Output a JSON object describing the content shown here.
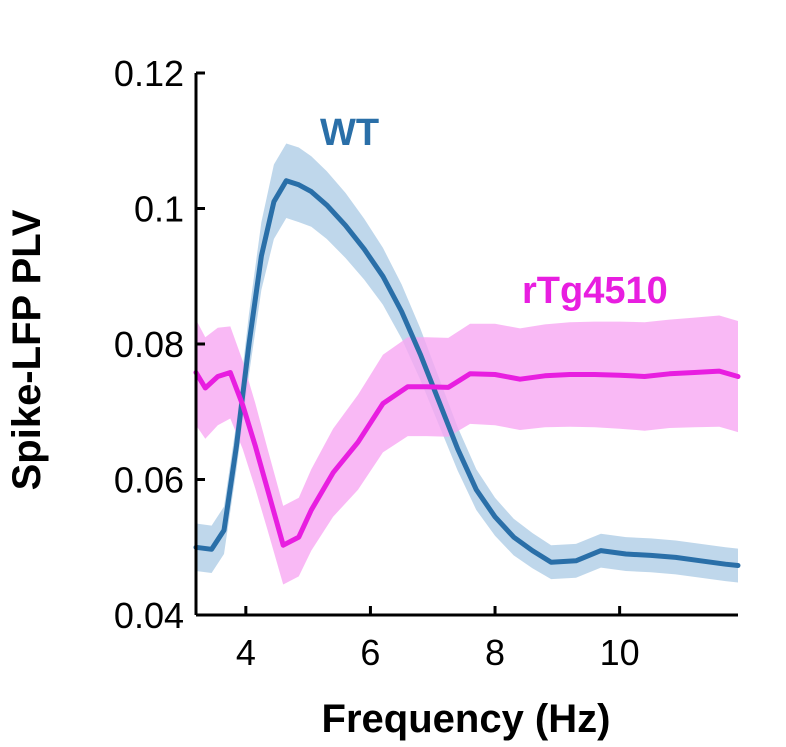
{
  "chart_data": {
    "type": "line",
    "xlabel": "Frequency (Hz)",
    "ylabel": "Spike-LFP PLV",
    "xlim": [
      3.2,
      11.9
    ],
    "ylim": [
      0.04,
      0.12
    ],
    "xticks": [
      4,
      6,
      8,
      10
    ],
    "yticks": [
      0.04,
      0.06,
      0.08,
      0.1,
      0.12
    ],
    "xtick_labels": [
      "4",
      "6",
      "8",
      "10"
    ],
    "ytick_labels": [
      "0.04",
      "0.06",
      "0.08",
      "0.1",
      "0.12"
    ],
    "grid": false,
    "series": [
      {
        "name": "WT",
        "label_text": "WT",
        "color": "#2a6fa8",
        "band_color": "#a9c9e4",
        "x": [
          3.2,
          3.45,
          3.65,
          3.85,
          4.05,
          4.25,
          4.45,
          4.65,
          4.85,
          5.05,
          5.3,
          5.6,
          5.9,
          6.2,
          6.5,
          6.8,
          7.1,
          7.4,
          7.7,
          8.0,
          8.3,
          8.6,
          8.9,
          9.3,
          9.7,
          10.1,
          10.5,
          10.9,
          11.3,
          11.7,
          11.9
        ],
        "y": [
          0.05,
          0.0497,
          0.0525,
          0.065,
          0.08,
          0.093,
          0.101,
          0.1041,
          0.1035,
          0.1025,
          0.1005,
          0.0975,
          0.094,
          0.09,
          0.0848,
          0.0785,
          0.0715,
          0.0645,
          0.0585,
          0.0545,
          0.0515,
          0.0495,
          0.0478,
          0.048,
          0.0495,
          0.049,
          0.0488,
          0.0485,
          0.048,
          0.0475,
          0.0473
        ],
        "err": [
          0.0035,
          0.0035,
          0.0035,
          0.0035,
          0.0045,
          0.005,
          0.0055,
          0.0055,
          0.0055,
          0.0052,
          0.005,
          0.0048,
          0.0045,
          0.0042,
          0.004,
          0.0038,
          0.0035,
          0.0032,
          0.003,
          0.0028,
          0.0027,
          0.0026,
          0.0025,
          0.0025,
          0.0025,
          0.0025,
          0.0025,
          0.0025,
          0.0025,
          0.0025,
          0.0025
        ]
      },
      {
        "name": "rTg4510",
        "label_text": "rTg4510",
        "color": "#e81ee0",
        "band_color": "#f8a8f3",
        "x": [
          3.2,
          3.35,
          3.55,
          3.75,
          3.95,
          4.15,
          4.35,
          4.6,
          4.85,
          5.05,
          5.4,
          5.8,
          6.2,
          6.6,
          6.9,
          7.25,
          7.6,
          8.0,
          8.4,
          8.8,
          9.2,
          9.6,
          10.0,
          10.4,
          10.8,
          11.2,
          11.6,
          11.9
        ],
        "y": [
          0.0758,
          0.0735,
          0.0752,
          0.0758,
          0.071,
          0.065,
          0.0585,
          0.0503,
          0.0515,
          0.0555,
          0.061,
          0.0655,
          0.0712,
          0.0737,
          0.0737,
          0.0736,
          0.0756,
          0.0755,
          0.0748,
          0.0753,
          0.0755,
          0.0755,
          0.0754,
          0.0752,
          0.0756,
          0.0758,
          0.076,
          0.0752
        ],
        "err": [
          0.0078,
          0.0075,
          0.0072,
          0.0068,
          0.0065,
          0.0063,
          0.006,
          0.0058,
          0.0058,
          0.006,
          0.0065,
          0.007,
          0.0072,
          0.0073,
          0.0073,
          0.0073,
          0.0074,
          0.0075,
          0.0075,
          0.0076,
          0.0077,
          0.0078,
          0.0079,
          0.008,
          0.008,
          0.0081,
          0.0082,
          0.0082
        ]
      }
    ]
  }
}
